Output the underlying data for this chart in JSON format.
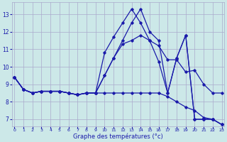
{
  "xlabel": "Graphe des températures (°c)",
  "background_color": "#cce8e8",
  "grid_color": "#aaaacc",
  "line_color": "#1a1aaa",
  "ylim": [
    6.6,
    13.7
  ],
  "xlim": [
    -0.3,
    23.3
  ],
  "yticks": [
    7,
    8,
    9,
    10,
    11,
    12,
    13
  ],
  "xticks": [
    0,
    1,
    2,
    3,
    4,
    5,
    6,
    7,
    8,
    9,
    10,
    11,
    12,
    13,
    14,
    15,
    16,
    17,
    18,
    19,
    20,
    21,
    22,
    23
  ],
  "series": {
    "line_spike_y": [
      9.4,
      8.7,
      8.5,
      8.6,
      8.6,
      8.6,
      8.5,
      8.4,
      8.5,
      8.5,
      10.8,
      11.7,
      12.5,
      13.3,
      12.5,
      11.5,
      10.3,
      8.5,
      10.5,
      11.8,
      7.0,
      7.0,
      7.0,
      6.7
    ],
    "line_mid_y": [
      9.4,
      8.7,
      8.5,
      8.6,
      8.6,
      8.6,
      8.5,
      8.4,
      8.5,
      8.5,
      9.5,
      10.5,
      11.3,
      11.5,
      11.8,
      11.5,
      11.2,
      10.4,
      10.4,
      9.7,
      9.8,
      9.0,
      8.5,
      8.5
    ],
    "line_flat_y": [
      9.4,
      8.7,
      8.5,
      8.6,
      8.6,
      8.6,
      8.5,
      8.4,
      8.5,
      8.5,
      8.5,
      8.5,
      8.5,
      8.5,
      8.5,
      8.5,
      8.5,
      8.3,
      8.0,
      7.7,
      7.5,
      7.1,
      7.0,
      6.7
    ],
    "line_v_y": [
      9.4,
      8.7,
      8.5,
      8.6,
      8.6,
      8.6,
      8.5,
      8.4,
      8.5,
      8.5,
      9.5,
      10.5,
      11.5,
      12.5,
      13.3,
      12.0,
      11.5,
      8.5,
      10.5,
      11.8,
      7.0,
      7.0,
      7.0,
      6.7
    ]
  }
}
